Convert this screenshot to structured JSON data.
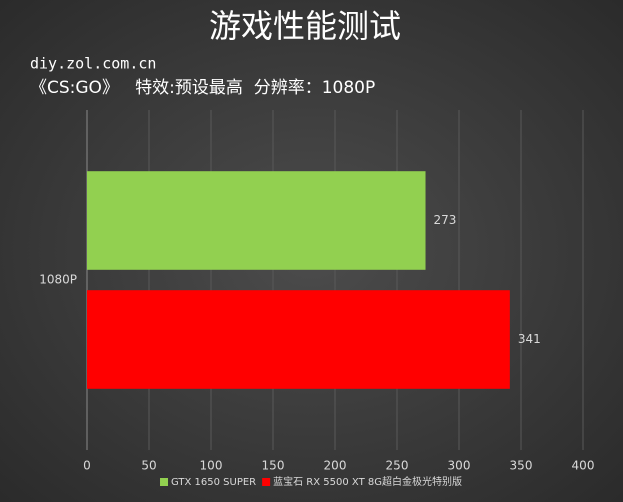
{
  "chart_data": {
    "type": "bar",
    "orientation": "horizontal",
    "title": "游戏性能测试",
    "watermark": "diy.zol.com.cn",
    "subtitle": "《CS:GO》   特效:预设最高  分辨率：1080P",
    "categories": [
      "1080P"
    ],
    "series": [
      {
        "name": "GTX 1650 SUPER",
        "color": "#92d050",
        "values": [
          273
        ]
      },
      {
        "name": "蓝宝石 RX 5500 XT 8G超白金极光特别版",
        "color": "#ff0000",
        "values": [
          341
        ]
      }
    ],
    "xlim": [
      0,
      400
    ],
    "xticks": [
      0,
      50,
      100,
      150,
      200,
      250,
      300,
      350,
      400
    ],
    "grid": true,
    "legend": "bottom"
  }
}
